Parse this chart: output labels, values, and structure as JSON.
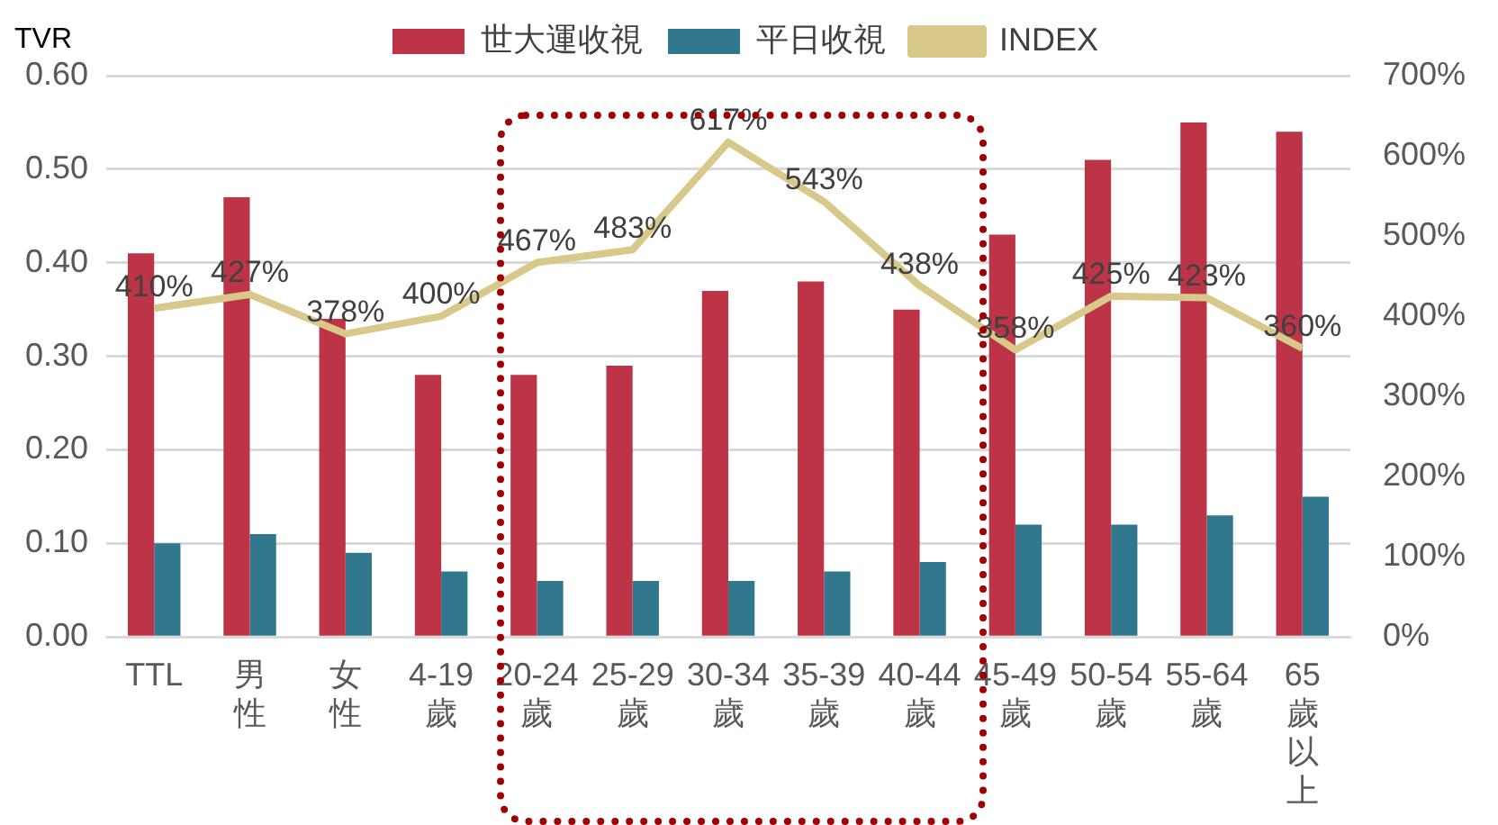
{
  "chart_data": {
    "type": "bar",
    "ylabel": "TVR",
    "categories": [
      "TTL",
      "男性",
      "女性",
      "4-19歲",
      "20-24歲",
      "25-29歲",
      "30-34歲",
      "35-39歲",
      "40-44歲",
      "45-49歲",
      "50-54歲",
      "55-64歲",
      "65歲以上"
    ],
    "series": [
      {
        "name": "世大運收視",
        "color": "#be3447",
        "values": [
          0.41,
          0.47,
          0.34,
          0.28,
          0.28,
          0.29,
          0.37,
          0.38,
          0.35,
          0.43,
          0.51,
          0.55,
          0.54
        ]
      },
      {
        "name": "平日收視",
        "color": "#31788e",
        "values": [
          0.1,
          0.11,
          0.09,
          0.07,
          0.06,
          0.06,
          0.06,
          0.07,
          0.08,
          0.12,
          0.12,
          0.13,
          0.15
        ]
      },
      {
        "name": "INDEX",
        "type": "line",
        "axis": "y2",
        "color": "#d8c98b",
        "values": [
          410,
          427,
          378,
          400,
          467,
          483,
          617,
          543,
          438,
          358,
          425,
          423,
          360
        ],
        "value_labels": [
          "410%",
          "427%",
          "378%",
          "400%",
          "467%",
          "483%",
          "617%",
          "543%",
          "438%",
          "358%",
          "425%",
          "423%",
          "360%"
        ]
      }
    ],
    "ylim": [
      0,
      0.6
    ],
    "yticks": [
      {
        "value": 0,
        "label": "0.00"
      },
      {
        "value": 0.1,
        "label": "0.10"
      },
      {
        "value": 0.2,
        "label": "0.20"
      },
      {
        "value": 0.3,
        "label": "0.30"
      },
      {
        "value": 0.4,
        "label": "0.40"
      },
      {
        "value": 0.5,
        "label": "0.50"
      },
      {
        "value": 0.6,
        "label": "0.60"
      }
    ],
    "y2lim": [
      0,
      700
    ],
    "y2ticks": [
      {
        "value": 0,
        "label": "0%"
      },
      {
        "value": 100,
        "label": "100%"
      },
      {
        "value": 200,
        "label": "200%"
      },
      {
        "value": 300,
        "label": "300%"
      },
      {
        "value": 400,
        "label": "400%"
      },
      {
        "value": 500,
        "label": "500%"
      },
      {
        "value": 600,
        "label": "600%"
      },
      {
        "value": 700,
        "label": "700%"
      }
    ],
    "grid": "y",
    "legend": "top",
    "marker": "none"
  }
}
